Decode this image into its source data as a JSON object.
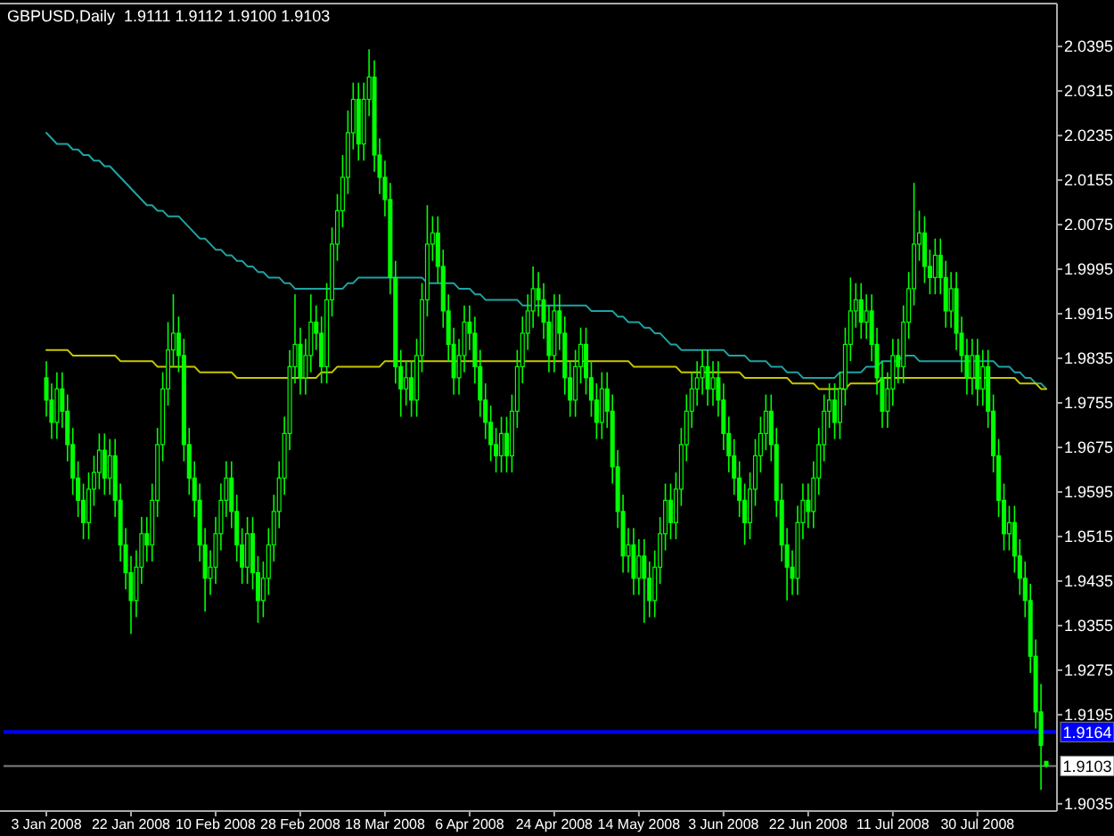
{
  "chart_data": {
    "type": "candlestick",
    "title": "GBPUSD,Daily  1.9111 1.9112 1.9100 1.9103",
    "color": "#00ff00",
    "categories": [
      "3 Jan 2008",
      null,
      null,
      null,
      null,
      null,
      null,
      null,
      null,
      null,
      null,
      null,
      null,
      null,
      null,
      null,
      "22 Jan 2008",
      null,
      null,
      null,
      null,
      null,
      null,
      null,
      null,
      null,
      null,
      null,
      null,
      null,
      null,
      null,
      "10 Feb 2008",
      null,
      null,
      null,
      null,
      null,
      null,
      null,
      null,
      null,
      null,
      null,
      null,
      null,
      null,
      null,
      "28 Feb 2008",
      null,
      null,
      null,
      null,
      null,
      null,
      null,
      null,
      null,
      null,
      null,
      null,
      null,
      null,
      null,
      "18 Mar 2008",
      null,
      null,
      null,
      null,
      null,
      null,
      null,
      null,
      null,
      null,
      null,
      null,
      null,
      null,
      null,
      "6 Apr 2008",
      null,
      null,
      null,
      null,
      null,
      null,
      null,
      null,
      null,
      null,
      null,
      null,
      null,
      null,
      null,
      "24 Apr 2008",
      null,
      null,
      null,
      null,
      null,
      null,
      null,
      null,
      null,
      null,
      null,
      null,
      null,
      null,
      null,
      "14 May 2008",
      null,
      null,
      null,
      null,
      null,
      null,
      null,
      null,
      null,
      null,
      null,
      null,
      null,
      null,
      null,
      "3 Jun 2008",
      null,
      null,
      null,
      null,
      null,
      null,
      null,
      null,
      null,
      null,
      null,
      null,
      null,
      null,
      null,
      "22 Jun 2008",
      null,
      null,
      null,
      null,
      null,
      null,
      null,
      null,
      null,
      null,
      null,
      null,
      null,
      null,
      null,
      "11 Jul 2008",
      null,
      null,
      null,
      null,
      null,
      null,
      null,
      null,
      null,
      null,
      null,
      null,
      null,
      null,
      null,
      "30 Jul 2008",
      null,
      null,
      null,
      null,
      null,
      null,
      null,
      null,
      null,
      null,
      null,
      null,
      null
    ],
    "ohlc": [
      [
        1.98,
        1.983,
        1.973,
        1.976
      ],
      [
        1.976,
        1.979,
        1.969,
        1.972
      ],
      [
        1.972,
        1.981,
        1.969,
        1.978
      ],
      [
        1.978,
        1.981,
        1.971,
        1.974
      ],
      [
        1.974,
        1.977,
        1.965,
        1.968
      ],
      [
        1.968,
        1.971,
        1.959,
        1.962
      ],
      [
        1.962,
        1.965,
        1.955,
        1.958
      ],
      [
        1.958,
        1.961,
        1.951,
        1.954
      ],
      [
        1.954,
        1.963,
        1.951,
        1.96
      ],
      [
        1.96,
        1.966,
        1.957,
        1.963
      ],
      [
        1.963,
        1.97,
        1.96,
        1.967
      ],
      [
        1.967,
        1.97,
        1.959,
        1.962
      ],
      [
        1.962,
        1.969,
        1.959,
        1.966
      ],
      [
        1.966,
        1.969,
        1.955,
        1.958
      ],
      [
        1.958,
        1.961,
        1.947,
        1.95
      ],
      [
        1.95,
        1.953,
        1.942,
        1.945
      ],
      [
        1.945,
        1.948,
        1.934,
        1.94
      ],
      [
        1.94,
        1.949,
        1.937,
        1.946
      ],
      [
        1.946,
        1.955,
        1.943,
        1.952
      ],
      [
        1.952,
        1.955,
        1.947,
        1.95
      ],
      [
        1.95,
        1.961,
        1.947,
        1.958
      ],
      [
        1.958,
        1.971,
        1.955,
        1.968
      ],
      [
        1.968,
        1.981,
        1.965,
        1.978
      ],
      [
        1.978,
        1.99,
        1.975,
        1.985
      ],
      [
        1.985,
        1.995,
        1.982,
        1.988
      ],
      [
        1.988,
        1.991,
        1.981,
        1.984
      ],
      [
        1.984,
        1.987,
        1.965,
        1.968
      ],
      [
        1.968,
        1.971,
        1.959,
        1.962
      ],
      [
        1.962,
        1.965,
        1.955,
        1.958
      ],
      [
        1.958,
        1.961,
        1.947,
        1.95
      ],
      [
        1.95,
        1.953,
        1.938,
        1.944
      ],
      [
        1.944,
        1.949,
        1.941,
        1.946
      ],
      [
        1.946,
        1.955,
        1.943,
        1.952
      ],
      [
        1.952,
        1.961,
        1.949,
        1.958
      ],
      [
        1.958,
        1.965,
        1.955,
        1.962
      ],
      [
        1.962,
        1.965,
        1.953,
        1.956
      ],
      [
        1.956,
        1.959,
        1.947,
        1.95
      ],
      [
        1.95,
        1.953,
        1.943,
        1.946
      ],
      [
        1.946,
        1.955,
        1.943,
        1.952
      ],
      [
        1.952,
        1.955,
        1.942,
        1.945
      ],
      [
        1.945,
        1.948,
        1.936,
        1.94
      ],
      [
        1.94,
        1.947,
        1.937,
        1.944
      ],
      [
        1.944,
        1.953,
        1.941,
        1.95
      ],
      [
        1.95,
        1.959,
        1.947,
        1.956
      ],
      [
        1.956,
        1.965,
        1.953,
        1.962
      ],
      [
        1.962,
        1.973,
        1.959,
        1.97
      ],
      [
        1.97,
        1.985,
        1.967,
        1.982
      ],
      [
        1.982,
        1.995,
        1.979,
        1.986
      ],
      [
        1.986,
        1.989,
        1.977,
        1.98
      ],
      [
        1.98,
        1.987,
        1.977,
        1.984
      ],
      [
        1.984,
        1.995,
        1.981,
        1.99
      ],
      [
        1.99,
        1.993,
        1.985,
        1.988
      ],
      [
        1.988,
        1.991,
        1.979,
        1.982
      ],
      [
        1.982,
        1.997,
        1.979,
        1.994
      ],
      [
        1.994,
        2.007,
        1.991,
        2.004
      ],
      [
        2.004,
        2.013,
        2.001,
        2.01
      ],
      [
        2.01,
        2.02,
        2.007,
        2.016
      ],
      [
        2.016,
        2.028,
        2.013,
        2.024
      ],
      [
        2.024,
        2.033,
        2.021,
        2.03
      ],
      [
        2.03,
        2.033,
        2.019,
        2.022
      ],
      [
        2.022,
        2.033,
        2.019,
        2.03
      ],
      [
        2.03,
        2.039,
        2.027,
        2.034
      ],
      [
        2.034,
        2.037,
        2.017,
        2.02
      ],
      [
        2.02,
        2.023,
        2.013,
        2.016
      ],
      [
        2.016,
        2.019,
        2.009,
        2.012
      ],
      [
        2.012,
        2.015,
        1.995,
        1.998
      ],
      [
        1.998,
        2.001,
        1.979,
        1.982
      ],
      [
        1.982,
        1.985,
        1.973,
        1.978
      ],
      [
        1.978,
        1.983,
        1.975,
        1.98
      ],
      [
        1.98,
        1.983,
        1.973,
        1.976
      ],
      [
        1.976,
        1.987,
        1.973,
        1.984
      ],
      [
        1.984,
        1.997,
        1.981,
        1.994
      ],
      [
        1.994,
        2.011,
        1.991,
        2.004
      ],
      [
        2.004,
        2.009,
        2.001,
        2.006
      ],
      [
        2.006,
        2.009,
        1.997,
        2.0
      ],
      [
        2.0,
        2.003,
        1.989,
        1.992
      ],
      [
        1.992,
        1.995,
        1.983,
        1.986
      ],
      [
        1.986,
        1.989,
        1.977,
        1.98
      ],
      [
        1.98,
        1.987,
        1.977,
        1.984
      ],
      [
        1.984,
        1.993,
        1.981,
        1.99
      ],
      [
        1.99,
        1.993,
        1.985,
        1.988
      ],
      [
        1.988,
        1.991,
        1.979,
        1.982
      ],
      [
        1.982,
        1.985,
        1.973,
        1.976
      ],
      [
        1.976,
        1.979,
        1.969,
        1.972
      ],
      [
        1.972,
        1.975,
        1.965,
        1.968
      ],
      [
        1.968,
        1.971,
        1.963,
        1.966
      ],
      [
        1.966,
        1.973,
        1.963,
        1.97
      ],
      [
        1.97,
        1.973,
        1.963,
        1.966
      ],
      [
        1.966,
        1.977,
        1.963,
        1.974
      ],
      [
        1.974,
        1.985,
        1.971,
        1.982
      ],
      [
        1.982,
        1.991,
        1.979,
        1.988
      ],
      [
        1.988,
        1.995,
        1.985,
        1.992
      ],
      [
        1.992,
        2.0,
        1.989,
        1.996
      ],
      [
        1.996,
        1.999,
        1.991,
        1.994
      ],
      [
        1.994,
        1.997,
        1.987,
        1.99
      ],
      [
        1.99,
        1.993,
        1.981,
        1.984
      ],
      [
        1.984,
        1.995,
        1.981,
        1.992
      ],
      [
        1.992,
        1.995,
        1.985,
        1.988
      ],
      [
        1.988,
        1.991,
        1.977,
        1.98
      ],
      [
        1.98,
        1.983,
        1.973,
        1.976
      ],
      [
        1.976,
        1.985,
        1.973,
        1.982
      ],
      [
        1.982,
        1.989,
        1.979,
        1.986
      ],
      [
        1.986,
        1.989,
        1.977,
        1.98
      ],
      [
        1.98,
        1.983,
        1.973,
        1.976
      ],
      [
        1.976,
        1.979,
        1.969,
        1.972
      ],
      [
        1.972,
        1.981,
        1.969,
        1.978
      ],
      [
        1.978,
        1.981,
        1.971,
        1.974
      ],
      [
        1.974,
        1.977,
        1.961,
        1.964
      ],
      [
        1.964,
        1.967,
        1.953,
        1.956
      ],
      [
        1.956,
        1.959,
        1.945,
        1.948
      ],
      [
        1.948,
        1.953,
        1.945,
        1.95
      ],
      [
        1.95,
        1.953,
        1.941,
        1.944
      ],
      [
        1.944,
        1.951,
        1.941,
        1.948
      ],
      [
        1.948,
        1.951,
        1.936,
        1.944
      ],
      [
        1.944,
        1.947,
        1.937,
        1.94
      ],
      [
        1.94,
        1.949,
        1.937,
        1.946
      ],
      [
        1.946,
        1.955,
        1.943,
        1.952
      ],
      [
        1.952,
        1.961,
        1.949,
        1.958
      ],
      [
        1.958,
        1.961,
        1.951,
        1.954
      ],
      [
        1.954,
        1.963,
        1.951,
        1.96
      ],
      [
        1.96,
        1.971,
        1.957,
        1.968
      ],
      [
        1.968,
        1.977,
        1.965,
        1.974
      ],
      [
        1.974,
        1.981,
        1.971,
        1.978
      ],
      [
        1.978,
        1.983,
        1.975,
        1.98
      ],
      [
        1.98,
        1.985,
        1.977,
        1.982
      ],
      [
        1.982,
        1.985,
        1.975,
        1.978
      ],
      [
        1.978,
        1.983,
        1.975,
        1.98
      ],
      [
        1.98,
        1.983,
        1.973,
        1.976
      ],
      [
        1.976,
        1.979,
        1.967,
        1.97
      ],
      [
        1.97,
        1.973,
        1.963,
        1.966
      ],
      [
        1.966,
        1.969,
        1.959,
        1.962
      ],
      [
        1.962,
        1.965,
        1.955,
        1.958
      ],
      [
        1.958,
        1.961,
        1.95,
        1.954
      ],
      [
        1.954,
        1.963,
        1.951,
        1.96
      ],
      [
        1.96,
        1.969,
        1.957,
        1.966
      ],
      [
        1.966,
        1.973,
        1.963,
        1.97
      ],
      [
        1.97,
        1.977,
        1.967,
        1.974
      ],
      [
        1.974,
        1.977,
        1.965,
        1.968
      ],
      [
        1.968,
        1.971,
        1.955,
        1.958
      ],
      [
        1.958,
        1.961,
        1.947,
        1.95
      ],
      [
        1.95,
        1.953,
        1.94,
        1.946
      ],
      [
        1.946,
        1.949,
        1.941,
        1.944
      ],
      [
        1.944,
        1.957,
        1.941,
        1.954
      ],
      [
        1.954,
        1.961,
        1.951,
        1.958
      ],
      [
        1.958,
        1.961,
        1.953,
        1.956
      ],
      [
        1.956,
        1.965,
        1.953,
        1.962
      ],
      [
        1.962,
        1.971,
        1.959,
        1.968
      ],
      [
        1.968,
        1.977,
        1.965,
        1.974
      ],
      [
        1.974,
        1.979,
        1.971,
        1.976
      ],
      [
        1.976,
        1.979,
        1.969,
        1.972
      ],
      [
        1.972,
        1.981,
        1.969,
        1.978
      ],
      [
        1.978,
        1.989,
        1.975,
        1.986
      ],
      [
        1.986,
        1.998,
        1.983,
        1.992
      ],
      [
        1.992,
        1.997,
        1.989,
        1.994
      ],
      [
        1.994,
        1.997,
        1.987,
        1.99
      ],
      [
        1.99,
        1.995,
        1.987,
        1.992
      ],
      [
        1.992,
        1.995,
        1.983,
        1.986
      ],
      [
        1.986,
        1.989,
        1.977,
        1.98
      ],
      [
        1.98,
        1.983,
        1.971,
        1.974
      ],
      [
        1.974,
        1.981,
        1.971,
        1.978
      ],
      [
        1.978,
        1.987,
        1.975,
        1.984
      ],
      [
        1.984,
        1.987,
        1.979,
        1.982
      ],
      [
        1.982,
        1.993,
        1.979,
        1.99
      ],
      [
        1.99,
        1.999,
        1.987,
        1.996
      ],
      [
        1.996,
        2.015,
        1.993,
        2.004
      ],
      [
        2.004,
        2.01,
        2.001,
        2.006
      ],
      [
        2.006,
        2.009,
        1.997,
        2.0
      ],
      [
        2.0,
        2.003,
        1.995,
        1.998
      ],
      [
        1.998,
        2.005,
        1.995,
        2.002
      ],
      [
        2.002,
        2.005,
        1.995,
        1.998
      ],
      [
        1.998,
        2.001,
        1.989,
        1.992
      ],
      [
        1.992,
        1.999,
        1.989,
        1.996
      ],
      [
        1.996,
        1.999,
        1.985,
        1.988
      ],
      [
        1.988,
        1.991,
        1.981,
        1.984
      ],
      [
        1.984,
        1.987,
        1.977,
        1.98
      ],
      [
        1.98,
        1.987,
        1.977,
        1.984
      ],
      [
        1.984,
        1.987,
        1.975,
        1.978
      ],
      [
        1.978,
        1.985,
        1.975,
        1.982
      ],
      [
        1.982,
        1.985,
        1.971,
        1.974
      ],
      [
        1.974,
        1.977,
        1.963,
        1.966
      ],
      [
        1.966,
        1.969,
        1.955,
        1.958
      ],
      [
        1.958,
        1.961,
        1.949,
        1.952
      ],
      [
        1.952,
        1.957,
        1.949,
        1.954
      ],
      [
        1.954,
        1.957,
        1.945,
        1.948
      ],
      [
        1.948,
        1.951,
        1.941,
        1.944
      ],
      [
        1.944,
        1.947,
        1.937,
        1.94
      ],
      [
        1.94,
        1.943,
        1.927,
        1.93
      ],
      [
        1.93,
        1.933,
        1.917,
        1.92
      ],
      [
        1.92,
        1.925,
        1.906,
        1.914
      ],
      [
        1.9111,
        1.9112,
        1.91,
        1.9103
      ]
    ],
    "series": [
      {
        "type": "line",
        "color": "#1fa3a3",
        "values": [
          2.024,
          2.023,
          2.022,
          2.022,
          2.022,
          2.021,
          2.021,
          2.02,
          2.02,
          2.019,
          2.019,
          2.018,
          2.018,
          2.017,
          2.016,
          2.015,
          2.014,
          2.013,
          2.012,
          2.011,
          2.011,
          2.01,
          2.01,
          2.009,
          2.009,
          2.009,
          2.008,
          2.007,
          2.006,
          2.005,
          2.005,
          2.004,
          2.003,
          2.003,
          2.002,
          2.002,
          2.001,
          2.001,
          2.0,
          2.0,
          1.999,
          1.999,
          1.998,
          1.998,
          1.998,
          1.997,
          1.997,
          1.996,
          1.996,
          1.996,
          1.996,
          1.996,
          1.996,
          1.996,
          1.996,
          1.996,
          1.996,
          1.997,
          1.997,
          1.998,
          1.998,
          1.998,
          1.998,
          1.998,
          1.998,
          1.998,
          1.998,
          1.998,
          1.998,
          1.998,
          1.998,
          1.998,
          1.997,
          1.997,
          1.997,
          1.997,
          1.997,
          1.997,
          1.996,
          1.996,
          1.996,
          1.995,
          1.995,
          1.994,
          1.994,
          1.994,
          1.994,
          1.994,
          1.994,
          1.994,
          1.993,
          1.993,
          1.993,
          1.993,
          1.993,
          1.993,
          1.993,
          1.993,
          1.993,
          1.993,
          1.993,
          1.993,
          1.993,
          1.992,
          1.992,
          1.992,
          1.992,
          1.992,
          1.991,
          1.991,
          1.99,
          1.99,
          1.99,
          1.989,
          1.989,
          1.988,
          1.988,
          1.987,
          1.986,
          1.986,
          1.985,
          1.985,
          1.985,
          1.985,
          1.985,
          1.985,
          1.985,
          1.985,
          1.985,
          1.984,
          1.984,
          1.984,
          1.984,
          1.983,
          1.983,
          1.983,
          1.983,
          1.982,
          1.982,
          1.982,
          1.981,
          1.981,
          1.981,
          1.98,
          1.98,
          1.98,
          1.98,
          1.98,
          1.98,
          1.98,
          1.981,
          1.981,
          1.981,
          1.981,
          1.981,
          1.982,
          1.982,
          1.982,
          1.983,
          1.983,
          1.983,
          1.983,
          1.984,
          1.984,
          1.984,
          1.983,
          1.983,
          1.983,
          1.983,
          1.983,
          1.983,
          1.983,
          1.983,
          1.983,
          1.983,
          1.983,
          1.983,
          1.983,
          1.983,
          1.983,
          1.982,
          1.982,
          1.982,
          1.981,
          1.981,
          1.98,
          1.98,
          1.979,
          1.979,
          1.978
        ]
      },
      {
        "type": "line",
        "color": "#c8c800",
        "values": [
          1.985,
          1.985,
          1.985,
          1.985,
          1.985,
          1.984,
          1.984,
          1.984,
          1.984,
          1.984,
          1.984,
          1.984,
          1.984,
          1.984,
          1.983,
          1.983,
          1.983,
          1.983,
          1.983,
          1.983,
          1.983,
          1.982,
          1.982,
          1.982,
          1.982,
          1.982,
          1.982,
          1.982,
          1.982,
          1.981,
          1.981,
          1.981,
          1.981,
          1.981,
          1.981,
          1.981,
          1.98,
          1.98,
          1.98,
          1.98,
          1.98,
          1.98,
          1.98,
          1.98,
          1.98,
          1.98,
          1.98,
          1.98,
          1.98,
          1.98,
          1.98,
          1.98,
          1.981,
          1.981,
          1.981,
          1.982,
          1.982,
          1.982,
          1.982,
          1.982,
          1.982,
          1.982,
          1.982,
          1.982,
          1.983,
          1.983,
          1.983,
          1.983,
          1.983,
          1.983,
          1.983,
          1.983,
          1.983,
          1.983,
          1.983,
          1.983,
          1.983,
          1.983,
          1.983,
          1.983,
          1.983,
          1.983,
          1.983,
          1.983,
          1.983,
          1.983,
          1.983,
          1.983,
          1.983,
          1.983,
          1.983,
          1.983,
          1.983,
          1.983,
          1.983,
          1.983,
          1.983,
          1.983,
          1.983,
          1.983,
          1.983,
          1.983,
          1.983,
          1.983,
          1.983,
          1.983,
          1.983,
          1.983,
          1.983,
          1.983,
          1.983,
          1.982,
          1.982,
          1.982,
          1.982,
          1.982,
          1.982,
          1.982,
          1.982,
          1.982,
          1.981,
          1.981,
          1.981,
          1.981,
          1.981,
          1.981,
          1.981,
          1.981,
          1.981,
          1.981,
          1.981,
          1.981,
          1.98,
          1.98,
          1.98,
          1.98,
          1.98,
          1.98,
          1.98,
          1.98,
          1.98,
          1.979,
          1.979,
          1.979,
          1.979,
          1.979,
          1.978,
          1.978,
          1.978,
          1.978,
          1.978,
          1.978,
          1.979,
          1.979,
          1.979,
          1.979,
          1.979,
          1.979,
          1.98,
          1.98,
          1.98,
          1.98,
          1.98,
          1.98,
          1.98,
          1.98,
          1.98,
          1.98,
          1.98,
          1.98,
          1.98,
          1.98,
          1.98,
          1.98,
          1.98,
          1.98,
          1.98,
          1.98,
          1.98,
          1.98,
          1.98,
          1.98,
          1.98,
          1.98,
          1.979,
          1.979,
          1.979,
          1.979,
          1.978,
          1.978
        ]
      }
    ],
    "ylim": [
      1.9022,
      2.0472
    ],
    "yticks": [
      2.0395,
      2.0315,
      2.0235,
      2.0155,
      2.0075,
      1.9995,
      1.9915,
      1.9835,
      1.9755,
      1.9675,
      1.9595,
      1.9515,
      1.9435,
      1.9355,
      1.9275,
      1.9195,
      1.9035
    ],
    "ref_lines": [
      {
        "axis": "y",
        "value": 1.9164,
        "label": "1.9164",
        "color": "#0000ff"
      },
      {
        "axis": "y",
        "value": 1.9103,
        "label": "1.9103",
        "color": "#808080"
      }
    ]
  }
}
